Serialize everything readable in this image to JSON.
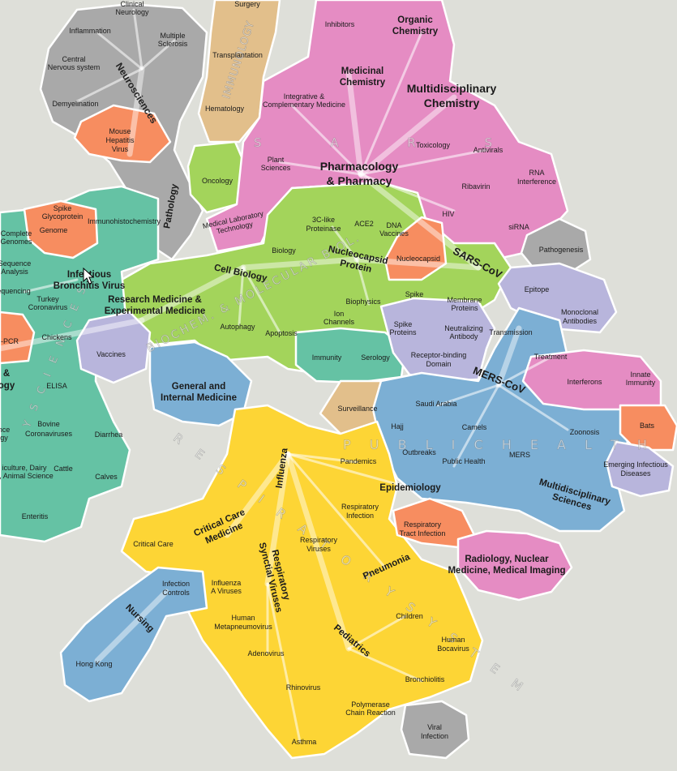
{
  "colors": {
    "background": "#dedfd9",
    "pink": "#e58cc3",
    "gray": "#a9a9a9",
    "tan": "#e2bf8b",
    "lime": "#a3d45b",
    "teal": "#65c2a4",
    "salmon": "#f78d60",
    "lavender": "#b8b5dc",
    "blue": "#7cafd4",
    "yellow": "#fdd535"
  },
  "fields": {
    "immunology": "IMMUNOLOGY",
    "sars": "S A R S",
    "neurosciences": "Neurosciences",
    "biochem": "BIOCHEM. & MOLECULAR BIOL.",
    "vet_sciences": "Y  S C I E N C E S",
    "public_health": "P U B L I C   H E A L T H",
    "respiratory": "R E S P I R A T O R Y   S Y S T E M"
  },
  "terms": {
    "surgery": "Surgery",
    "transplantation": "Transplantation",
    "hematology": "Hematology",
    "oncology": "Oncology",
    "pathology": "Pathology",
    "clinical_neurology_1": "Clinical",
    "clinical_neurology_2": "Neurology",
    "inflammation": "Inflammation",
    "multiple_sclerosis_1": "Multiple",
    "multiple_sclerosis_2": "Sclerosis",
    "central_ns_1": "Central",
    "central_ns_2": "Nervous system",
    "demyelination": "Demyelination",
    "mhv_1": "Mouse",
    "mhv_2": "Hepatitis",
    "mhv_3": "Virus",
    "inhibitors": "Inhibitors",
    "organic_chem_1": "Organic",
    "organic_chem_2": "Chemistry",
    "medicinal_chem_1": "Medicinal",
    "medicinal_chem_2": "Chemistry",
    "multidisciplinary_chem_1": "Multidisciplinary",
    "multidisciplinary_chem_2": "Chemistry",
    "integrative_1": "Integrative &",
    "integrative_2": "Complementary Medicine",
    "plant_sciences_1": "Plant",
    "plant_sciences_2": "Sciences",
    "pharmacology_1": "Pharmacology",
    "pharmacology_2": "& Pharmacy",
    "toxicology": "Toxicology",
    "antivirals": "Antivirals",
    "ribavirin": "Ribavirin",
    "rna_interference_1": "RNA",
    "rna_interference_2": "Interference",
    "hiv": "HIV",
    "sirna": "siRNA",
    "med_lab_1": "Medical Laboratory",
    "med_lab_2": "Technology",
    "cl3_1": "3C-like",
    "cl3_2": "Proteinase",
    "ace2": "ACE2",
    "dna_vaccines_1": "DNA",
    "dna_vaccines_2": "Vaccines",
    "biology": "Biology",
    "cell_biology": "Cell Biology",
    "nucleocapsid_protein_1": "Nucleocapsid",
    "nucleocapsid_protein_2": "Protein",
    "nucleocapsid": "Nucleocapsid",
    "sars_cov": "SARS-CoV",
    "pathogenesis": "Pathogenesis",
    "epitope": "Epitope",
    "monoclonal_1": "Monoclonal",
    "monoclonal_2": "Antibodies",
    "spike_glyco_1": "Spike",
    "spike_glyco_2": "Glycoprotein",
    "genome": "Genome",
    "immunohisto": "Immunohistochemistry",
    "complete_genomes_1": "Complete",
    "complete_genomes_2": "Genomes",
    "seq_analysis_1": "Sequence",
    "seq_analysis_2": "Analysis",
    "sequencing": "Sequencing",
    "ibv_1": "Infectious",
    "ibv_2": "Bronchitis Virus",
    "turkey_1": "Turkey",
    "turkey_2": "Coronavirus",
    "research_med_1": "Research Medicine &",
    "research_med_2": "Experimental Medicine",
    "spike": "Spike",
    "biophysics": "Biophysics",
    "membrane_1": "Membrane",
    "membrane_2": "Proteins",
    "autophagy": "Autophagy",
    "apoptosis": "Apoptosis",
    "ion_channels_1": "Ion",
    "ion_channels_2": "Channels",
    "spike_proteins_1": "Spike",
    "spike_proteins_2": "Proteins",
    "neutralizing_1": "Neutralizing",
    "neutralizing_2": "Antibody",
    "transmission": "Transmission",
    "rt_pcr": "-PCR",
    "chickens": "Chickens",
    "vaccines": "Vaccines",
    "immunity": "Immunity",
    "serology": "Serology",
    "receptor_1": "Receptor-binding",
    "receptor_2": "Domain",
    "treatment": "Treatment",
    "mers_cov": "MERS-CoV",
    "interferons": "Interferons",
    "innate_1": "Innate",
    "innate_2": "Immunity",
    "amp_1": "&",
    "amp_2": "ogy",
    "elisa": "ELISA",
    "general_med_1": "General and",
    "general_med_2": "Internal Medicine",
    "surveillance": "Surveillance",
    "saudi_arabia": "Saudi Arabia",
    "hajj": "Hajj",
    "camels": "Camels",
    "zoonosis": "Zoonosis",
    "bats": "Bats",
    "bovine_1": "Bovine",
    "bovine_2": "Coronaviruses",
    "diarrhea": "Diarrhea",
    "nce": "nce",
    "gy": "gy",
    "outbreaks": "Outbreaks",
    "public_health": "Public Health",
    "mers": "MERS",
    "emerging_1": "Emerging Infectious",
    "emerging_2": "Diseases",
    "dairy_1": "iculture, Dairy",
    "dairy_2": "e, Animal Science",
    "cattle": "Cattle",
    "calves": "Calves",
    "influenza": "Influenza",
    "pandemics": "Pandemics",
    "epidemiology": "Epidemiology",
    "multi_sciences_1": "Multidisciplinary",
    "multi_sciences_2": "Sciences",
    "enteritis": "Enteritis",
    "critical_care_med_1": "Critical Care",
    "critical_care_med_2": "Medicine",
    "resp_infection_1": "Respiratory",
    "resp_infection_2": "Infection",
    "resp_tract_1": "Respiratory",
    "resp_tract_2": "Tract Infection",
    "critical_care": "Critical Care",
    "resp_viruses_1": "Respiratory",
    "resp_viruses_2": "Viruses",
    "pneumonia": "Pneumonia",
    "radiology_1": "Radiology, Nuclear",
    "radiology_2": "Medicine, Medical Imaging",
    "infection_controls_1": "Infection",
    "infection_controls_2": "Controls",
    "influenza_a_1": "Influenza",
    "influenza_a_2": "A Viruses",
    "rsv_1": "Respiratory",
    "rsv_2": "Synctial Viruses",
    "nursing": "Nursing",
    "hmpv_1": "Human",
    "hmpv_2": "Metapneumovirus",
    "children": "Children",
    "human_bocavirus_1": "Human",
    "human_bocavirus_2": "Bocavirus",
    "pediatrics": "Pediatrics",
    "adenovirus": "Adenovirus",
    "bronchiolitis": "Bronchiolitis",
    "hong_kong": "Hong Kong",
    "rhinovirus": "Rhinovirus",
    "pcr_1": "Polymerase",
    "pcr_2": "Chain Reaction",
    "viral_infection_1": "Viral",
    "viral_infection_2": "Infection",
    "asthma": "Asthma"
  }
}
